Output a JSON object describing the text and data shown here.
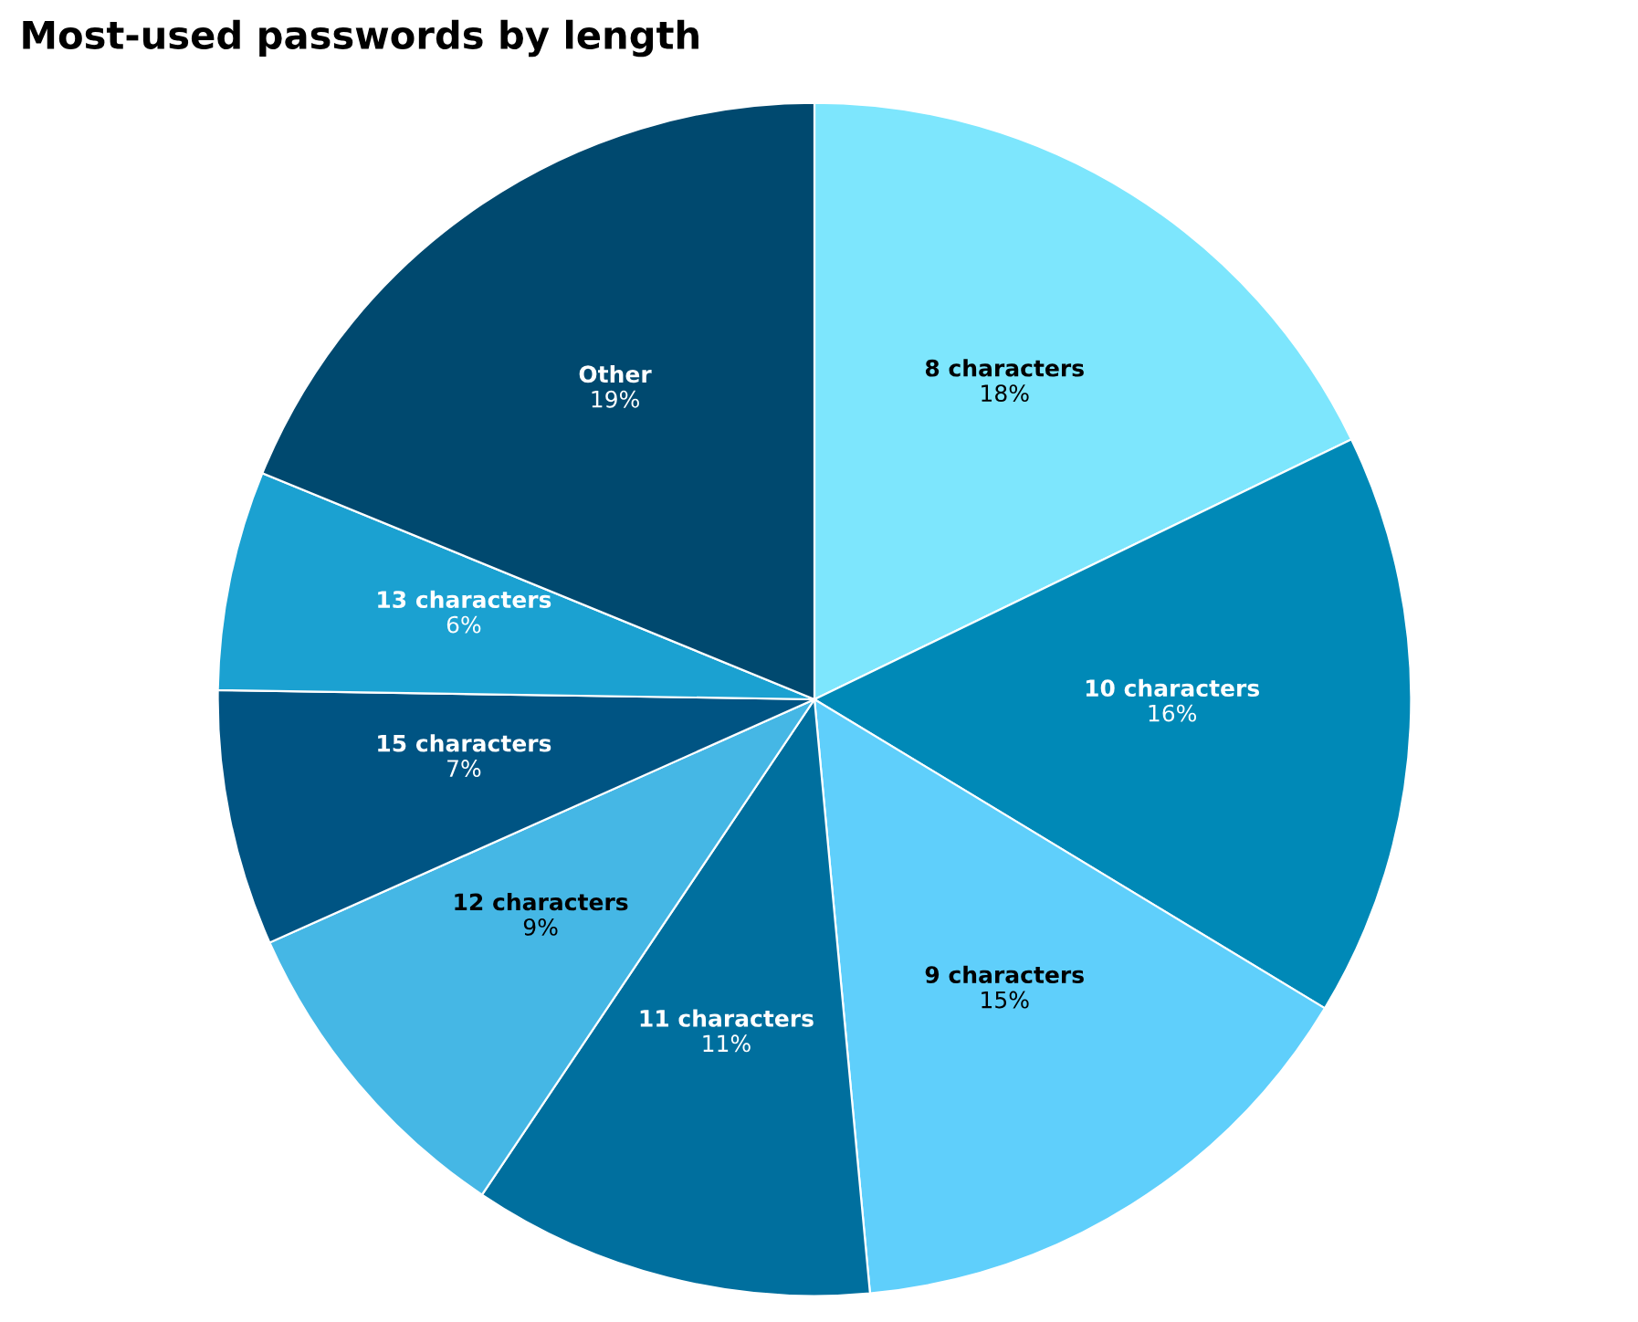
{
  "chart_data": {
    "type": "pie",
    "title": "Most-used passwords by length",
    "categories": [
      "8 characters",
      "10 characters",
      "9 characters",
      "11 characters",
      "12 characters",
      "15 characters",
      "13 characters",
      "Other"
    ],
    "values": [
      18,
      16,
      15,
      11,
      9,
      7,
      6,
      19
    ],
    "value_labels": [
      "18%",
      "16%",
      "15%",
      "11%",
      "9%",
      "7%",
      "6%",
      "19%"
    ],
    "colors": [
      "#7de6fd",
      "#0089b7",
      "#5fcffb",
      "#006f9e",
      "#45b7e5",
      "#005483",
      "#1ba1d1",
      "#00496f"
    ],
    "legend": false
  }
}
